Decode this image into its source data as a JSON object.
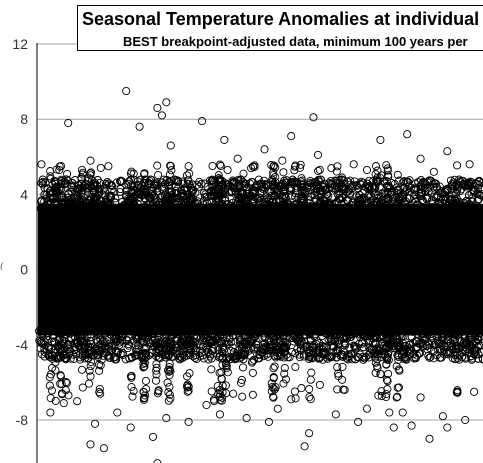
{
  "chart_data": {
    "type": "scatter",
    "title": "Seasonal Temperature Anomalies at individual st",
    "subtitle": "BEST breakpoint-adjusted data, minimum 100 years per",
    "xlabel": "",
    "ylabel": "",
    "ylim": [
      -10,
      12
    ],
    "yticks": [
      12,
      8,
      4,
      0,
      -4,
      -8
    ],
    "grid": "horizontal",
    "marker": "open-circle",
    "marker_color": "#000000",
    "dense_band": {
      "low": -3.5,
      "high": 3.5
    },
    "outliers": [
      [
        0.2,
        9.5
      ],
      [
        0.27,
        8.6
      ],
      [
        0.29,
        8.9
      ],
      [
        0.28,
        8.2
      ],
      [
        0.23,
        7.6
      ],
      [
        0.07,
        7.8
      ],
      [
        0.37,
        7.9
      ],
      [
        0.62,
        8.1
      ],
      [
        0.57,
        7.1
      ],
      [
        0.83,
        7.2
      ],
      [
        0.77,
        6.9
      ],
      [
        0.3,
        6.6
      ],
      [
        0.51,
        6.4
      ],
      [
        0.92,
        6.3
      ],
      [
        0.63,
        6.1
      ],
      [
        0.42,
        6.9
      ],
      [
        0.12,
        5.8
      ],
      [
        0.45,
        5.9
      ],
      [
        0.71,
        5.6
      ],
      [
        0.01,
        5.6
      ],
      [
        0.97,
        5.6
      ],
      [
        0.86,
        5.9
      ],
      [
        0.34,
        5.5
      ],
      [
        0.55,
        5.8
      ],
      [
        0.16,
        5.5
      ],
      [
        0.66,
        5.4
      ],
      [
        0.05,
        5.3
      ],
      [
        0.89,
        5.2
      ],
      [
        0.74,
        5.3
      ],
      [
        0.48,
        5.4
      ],
      [
        0.09,
        -7.0
      ],
      [
        0.13,
        -8.2
      ],
      [
        0.12,
        -9.3
      ],
      [
        0.15,
        -9.5
      ],
      [
        0.21,
        -8.4
      ],
      [
        0.26,
        -8.9
      ],
      [
        0.29,
        -7.9
      ],
      [
        0.27,
        -10.3
      ],
      [
        0.34,
        -8.1
      ],
      [
        0.41,
        -7.7
      ],
      [
        0.47,
        -7.9
      ],
      [
        0.52,
        -8.1
      ],
      [
        0.54,
        -7.4
      ],
      [
        0.6,
        -9.4
      ],
      [
        0.61,
        -8.7
      ],
      [
        0.67,
        -7.7
      ],
      [
        0.72,
        -8.1
      ],
      [
        0.74,
        -7.4
      ],
      [
        0.79,
        -7.6
      ],
      [
        0.8,
        -8.4
      ],
      [
        0.82,
        -7.6
      ],
      [
        0.84,
        -8.3
      ],
      [
        0.88,
        -9.0
      ],
      [
        0.91,
        -7.8
      ],
      [
        0.92,
        -8.4
      ],
      [
        0.96,
        -8.0
      ],
      [
        0.03,
        -7.6
      ],
      [
        0.06,
        -7.1
      ],
      [
        0.18,
        -7.6
      ],
      [
        0.38,
        -7.2
      ],
      [
        0.44,
        -6.6
      ],
      [
        0.57,
        -6.9
      ],
      [
        0.69,
        -6.4
      ],
      [
        0.86,
        -6.8
      ],
      [
        0.98,
        -6.5
      ]
    ]
  },
  "page": {
    "title_line1": "Seasonal Temperature Anomalies at individual st",
    "title_line2": "BEST breakpoint-adjusted data, minimum 100 years per",
    "ylabel_fragment": "("
  }
}
